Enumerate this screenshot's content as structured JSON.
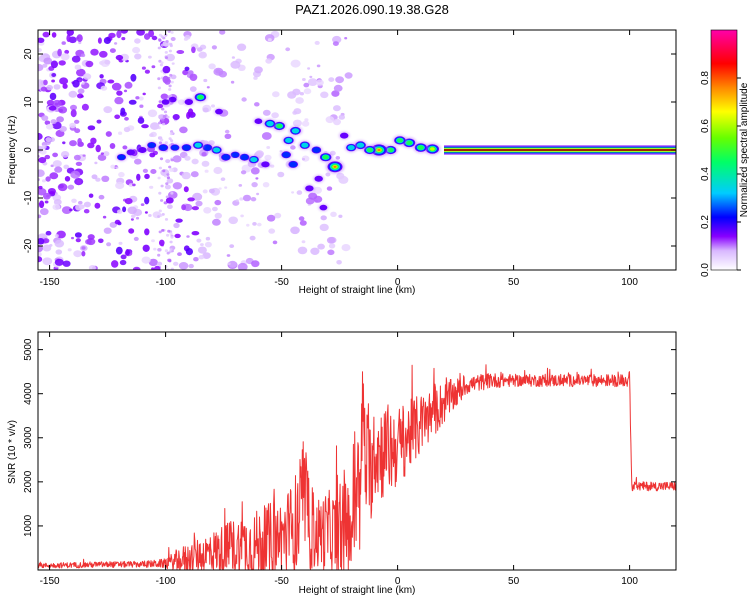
{
  "title": "PAZ1.2026.090.19.38.G28",
  "chart_data": [
    {
      "type": "heatmap",
      "title": "PAZ1.2026.090.19.38.G28",
      "xlabel": "Height of straight line (km)",
      "ylabel": "Frequency (Hz)",
      "xlim": [
        -155,
        120
      ],
      "ylim": [
        -25,
        25
      ],
      "xticks": [
        -150,
        -100,
        -50,
        0,
        50,
        100
      ],
      "yticks": [
        -20,
        -10,
        0,
        10,
        20
      ],
      "colorbar": {
        "label": "Normalized spectral amplitude",
        "range": [
          0,
          1
        ],
        "ticks": [
          "0.0",
          "0.2",
          "0.4",
          "0.6",
          "0.8"
        ],
        "colors": [
          "#ffffff",
          "#8800ff",
          "#0000ff",
          "#00ccff",
          "#00ff00",
          "#ffff00",
          "#ff8800",
          "#ff0000",
          "#ff00aa"
        ]
      },
      "ridge": {
        "name": "dominant frequency",
        "x": [
          20,
          40,
          60,
          80,
          100,
          120
        ],
        "y": [
          0,
          0,
          0,
          0,
          0,
          0
        ],
        "amplitude": 0.85
      },
      "blobs": [
        {
          "x": 15,
          "y": 0.2,
          "a": 0.6
        },
        {
          "x": 10,
          "y": 0.5,
          "a": 0.5
        },
        {
          "x": 5,
          "y": 1.5,
          "a": 0.5
        },
        {
          "x": 1,
          "y": 2,
          "a": 0.45
        },
        {
          "x": -3,
          "y": 0,
          "a": 0.45
        },
        {
          "x": -8,
          "y": 0,
          "a": 0.8
        },
        {
          "x": -12,
          "y": 0,
          "a": 0.45
        },
        {
          "x": -16,
          "y": 1,
          "a": 0.4
        },
        {
          "x": -20,
          "y": 0.5,
          "a": 0.35
        },
        {
          "x": -23,
          "y": 3,
          "a": 0.2
        },
        {
          "x": -27,
          "y": -3.5,
          "a": 0.75
        },
        {
          "x": -31,
          "y": -1.5,
          "a": 0.45
        },
        {
          "x": -34,
          "y": -6,
          "a": 0.2
        },
        {
          "x": -38,
          "y": -8,
          "a": 0.2
        },
        {
          "x": -35,
          "y": 0,
          "a": 0.3
        },
        {
          "x": -40,
          "y": 1,
          "a": 0.35
        },
        {
          "x": -44,
          "y": 4,
          "a": 0.4
        },
        {
          "x": -47,
          "y": 2,
          "a": 0.35
        },
        {
          "x": -51,
          "y": 5,
          "a": 0.45
        },
        {
          "x": -55,
          "y": 5.5,
          "a": 0.4
        },
        {
          "x": -45,
          "y": -3,
          "a": 0.3
        },
        {
          "x": -48,
          "y": -1,
          "a": 0.3
        },
        {
          "x": -57,
          "y": -3,
          "a": 0.2
        },
        {
          "x": -62,
          "y": -2,
          "a": 0.35
        },
        {
          "x": -66,
          "y": -1.5,
          "a": 0.3
        },
        {
          "x": -70,
          "y": -1,
          "a": 0.25
        },
        {
          "x": -74,
          "y": -1.5,
          "a": 0.3
        },
        {
          "x": -78,
          "y": 0,
          "a": 0.35
        },
        {
          "x": -82,
          "y": 0.5,
          "a": 0.3
        },
        {
          "x": -86,
          "y": 1,
          "a": 0.35
        },
        {
          "x": -91,
          "y": 0.5,
          "a": 0.3
        },
        {
          "x": -96,
          "y": 0.5,
          "a": 0.25
        },
        {
          "x": -101,
          "y": 0.5,
          "a": 0.3
        },
        {
          "x": -106,
          "y": 1,
          "a": 0.25
        },
        {
          "x": -110,
          "y": 0,
          "a": 0.2
        },
        {
          "x": -115,
          "y": -0.5,
          "a": 0.2
        },
        {
          "x": -119,
          "y": -1.5,
          "a": 0.25
        },
        {
          "x": -85,
          "y": 11,
          "a": 0.45
        },
        {
          "x": -90,
          "y": 10,
          "a": 0.2
        },
        {
          "x": -97,
          "y": 10.5,
          "a": 0.15
        },
        {
          "x": -100,
          "y": 10,
          "a": 0.15
        },
        {
          "x": -77,
          "y": 8,
          "a": 0.15
        },
        {
          "x": -60,
          "y": 6,
          "a": 0.15
        },
        {
          "x": -32,
          "y": -12,
          "a": 0.15
        }
      ]
    },
    {
      "type": "line",
      "xlabel": "Height of straight line (km)",
      "ylabel": "SNR (10 * v/v)",
      "xlim": [
        -155,
        120
      ],
      "ylim": [
        0,
        5400
      ],
      "xticks": [
        -150,
        -100,
        -50,
        0,
        50,
        100
      ],
      "yticks": [
        1000,
        2000,
        3000,
        4000,
        5000
      ],
      "series": [
        {
          "name": "SNR",
          "color": "#ee3333",
          "x": [
            -155,
            -130,
            -110,
            -100,
            -95,
            -80,
            -70,
            -60,
            -50,
            -45,
            -42,
            -40,
            -38,
            -35,
            -30,
            -25,
            -22,
            -20,
            -18,
            -16,
            -15,
            -14,
            -12,
            -10,
            -5,
            0,
            10,
            20,
            30,
            40,
            50,
            60,
            70,
            80,
            90,
            99,
            100,
            101,
            110,
            120
          ],
          "y": [
            100,
            120,
            130,
            150,
            200,
            400,
            500,
            550,
            700,
            900,
            1200,
            1600,
            1000,
            800,
            900,
            750,
            1000,
            900,
            2000,
            1500,
            4000,
            2500,
            2200,
            2700,
            2700,
            2800,
            3300,
            3800,
            4200,
            4300,
            4300,
            4300,
            4300,
            4300,
            4300,
            4300,
            4300,
            1900,
            1900,
            1900
          ],
          "spread": [
            80,
            100,
            100,
            150,
            400,
            700,
            1000,
            1200,
            1400,
            1600,
            2000,
            1600,
            1500,
            1200,
            1300,
            1500,
            1600,
            1700,
            3000,
            1600,
            2000,
            1800,
            1800,
            1600,
            1600,
            1300,
            1000,
            700,
            300,
            250,
            200,
            200,
            200,
            200,
            200,
            200,
            300,
            150,
            150,
            150
          ]
        }
      ]
    }
  ]
}
